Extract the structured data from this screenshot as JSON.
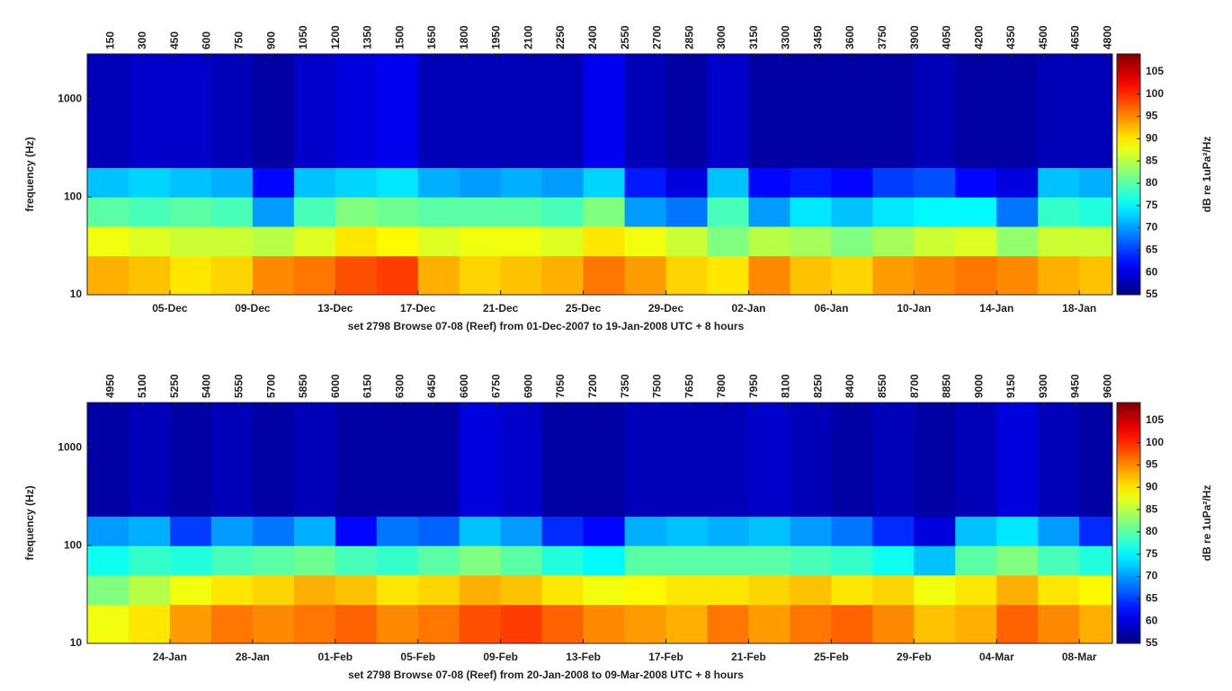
{
  "chart_data": [
    {
      "type": "heatmap",
      "title": "set 2798 Browse 07-08 (Reef) from 01-Dec-2007 to 19-Jan-2008 UTC + 8 hours",
      "y_label": "frequency (Hz)",
      "colorbar_label": "dB re 1uPa²/Hz",
      "log_y": true,
      "ylim": [
        10,
        2900
      ],
      "yticks": [
        10,
        100,
        1000
      ],
      "xlim": [
        0,
        49.6
      ],
      "xticks": [
        {
          "value": 4,
          "label": "05-Dec"
        },
        {
          "value": 8,
          "label": "09-Dec"
        },
        {
          "value": 12,
          "label": "13-Dec"
        },
        {
          "value": 16,
          "label": "17-Dec"
        },
        {
          "value": 20,
          "label": "21-Dec"
        },
        {
          "value": 24,
          "label": "25-Dec"
        },
        {
          "value": 28,
          "label": "29-Dec"
        },
        {
          "value": 32,
          "label": "02-Jan"
        },
        {
          "value": 36,
          "label": "06-Jan"
        },
        {
          "value": 40,
          "label": "10-Jan"
        },
        {
          "value": 44,
          "label": "14-Jan"
        },
        {
          "value": 48,
          "label": "18-Jan"
        }
      ],
      "top_xlim": [
        40,
        4820
      ],
      "top_xticks": [
        150,
        300,
        450,
        600,
        750,
        900,
        1050,
        1200,
        1350,
        1500,
        1650,
        1800,
        1950,
        2100,
        2250,
        2400,
        2550,
        2700,
        2850,
        3000,
        3150,
        3300,
        3450,
        3600,
        3750,
        3900,
        4050,
        4200,
        4350,
        4500,
        4650,
        4800
      ],
      "clim": [
        55,
        109
      ],
      "cticks": [
        55,
        60,
        65,
        70,
        75,
        80,
        85,
        90,
        95,
        100,
        105
      ],
      "x_bins": [
        0,
        2,
        4,
        6,
        8,
        10,
        12,
        14,
        16,
        18,
        20,
        22,
        24,
        26,
        28,
        30,
        32,
        34,
        36,
        38,
        40,
        42,
        44,
        46,
        48,
        49.6
      ],
      "y_bins": [
        10,
        25,
        50,
        100,
        200,
        2900
      ],
      "values": [
        [
          93,
          92,
          90,
          91,
          95,
          96,
          98,
          99,
          93,
          91,
          92,
          93,
          96,
          94,
          91,
          90,
          95,
          92,
          91,
          94,
          95,
          96,
          95,
          93,
          92
        ],
        [
          88,
          87,
          86,
          86,
          85,
          87,
          90,
          89,
          87,
          88,
          88,
          87,
          90,
          88,
          86,
          82,
          85,
          84,
          82,
          84,
          86,
          87,
          83,
          86,
          86
        ],
        [
          80,
          79,
          80,
          79,
          70,
          79,
          82,
          81,
          80,
          80,
          80,
          79,
          82,
          70,
          68,
          79,
          70,
          74,
          72,
          74,
          75,
          75,
          68,
          78,
          77
        ],
        [
          72,
          73,
          72,
          71,
          62,
          72,
          73,
          74,
          71,
          70,
          71,
          70,
          73,
          63,
          60,
          72,
          62,
          63,
          62,
          65,
          66,
          62,
          60,
          72,
          71
        ],
        [
          58,
          59,
          59,
          58,
          57,
          59,
          60,
          61,
          58,
          58,
          58,
          58,
          61,
          58,
          57,
          59,
          57,
          57,
          57,
          57,
          58,
          57,
          57,
          58,
          58
        ]
      ]
    },
    {
      "type": "heatmap",
      "title": "set 2798 Browse 07-08 (Reef) from 20-Jan-2008 to 09-Mar-2008 UTC + 8 hours",
      "y_label": "frequency (Hz)",
      "colorbar_label": "dB re 1uPa²/Hz",
      "log_y": true,
      "ylim": [
        10,
        2900
      ],
      "yticks": [
        10,
        100,
        1000
      ],
      "xlim": [
        0,
        49.6
      ],
      "xticks": [
        {
          "value": 4,
          "label": "24-Jan"
        },
        {
          "value": 8,
          "label": "28-Jan"
        },
        {
          "value": 12,
          "label": "01-Feb"
        },
        {
          "value": 16,
          "label": "05-Feb"
        },
        {
          "value": 20,
          "label": "09-Feb"
        },
        {
          "value": 24,
          "label": "13-Feb"
        },
        {
          "value": 28,
          "label": "17-Feb"
        },
        {
          "value": 32,
          "label": "21-Feb"
        },
        {
          "value": 36,
          "label": "25-Feb"
        },
        {
          "value": 40,
          "label": "29-Feb"
        },
        {
          "value": 44,
          "label": "04-Mar"
        },
        {
          "value": 48,
          "label": "08-Mar"
        }
      ],
      "top_xlim": [
        4840,
        9620
      ],
      "top_xticks": [
        4950,
        5100,
        5250,
        5400,
        5550,
        5700,
        5850,
        6000,
        6150,
        6300,
        6450,
        6600,
        6750,
        6900,
        7050,
        7200,
        7350,
        7500,
        7650,
        7800,
        7950,
        8100,
        8250,
        8400,
        8550,
        8700,
        8850,
        9000,
        9150,
        9300,
        9450,
        9600
      ],
      "clim": [
        55,
        109
      ],
      "cticks": [
        55,
        60,
        65,
        70,
        75,
        80,
        85,
        90,
        95,
        100,
        105
      ],
      "x_bins": [
        0,
        2,
        4,
        6,
        8,
        10,
        12,
        14,
        16,
        18,
        20,
        22,
        24,
        26,
        28,
        30,
        32,
        34,
        36,
        38,
        40,
        42,
        44,
        46,
        48,
        49.6
      ],
      "y_bins": [
        10,
        25,
        50,
        100,
        200,
        2900
      ],
      "values": [
        [
          88,
          90,
          94,
          96,
          95,
          96,
          97,
          95,
          96,
          98,
          99,
          97,
          95,
          94,
          93,
          96,
          94,
          96,
          97,
          95,
          92,
          93,
          97,
          95,
          93
        ],
        [
          82,
          85,
          88,
          90,
          91,
          93,
          92,
          90,
          91,
          93,
          92,
          90,
          88,
          89,
          90,
          90,
          91,
          92,
          90,
          91,
          88,
          90,
          93,
          90,
          89
        ],
        [
          76,
          78,
          77,
          79,
          80,
          81,
          79,
          78,
          80,
          82,
          80,
          77,
          75,
          80,
          80,
          80,
          80,
          79,
          78,
          76,
          72,
          80,
          82,
          79,
          77
        ],
        [
          70,
          71,
          65,
          70,
          68,
          71,
          62,
          68,
          67,
          72,
          70,
          64,
          62,
          71,
          72,
          71,
          72,
          70,
          68,
          64,
          60,
          72,
          74,
          70,
          64
        ],
        [
          57,
          58,
          57,
          58,
          57,
          58,
          57,
          57,
          57,
          60,
          59,
          57,
          57,
          58,
          58,
          58,
          59,
          58,
          57,
          58,
          57,
          58,
          60,
          58,
          57
        ]
      ]
    }
  ]
}
